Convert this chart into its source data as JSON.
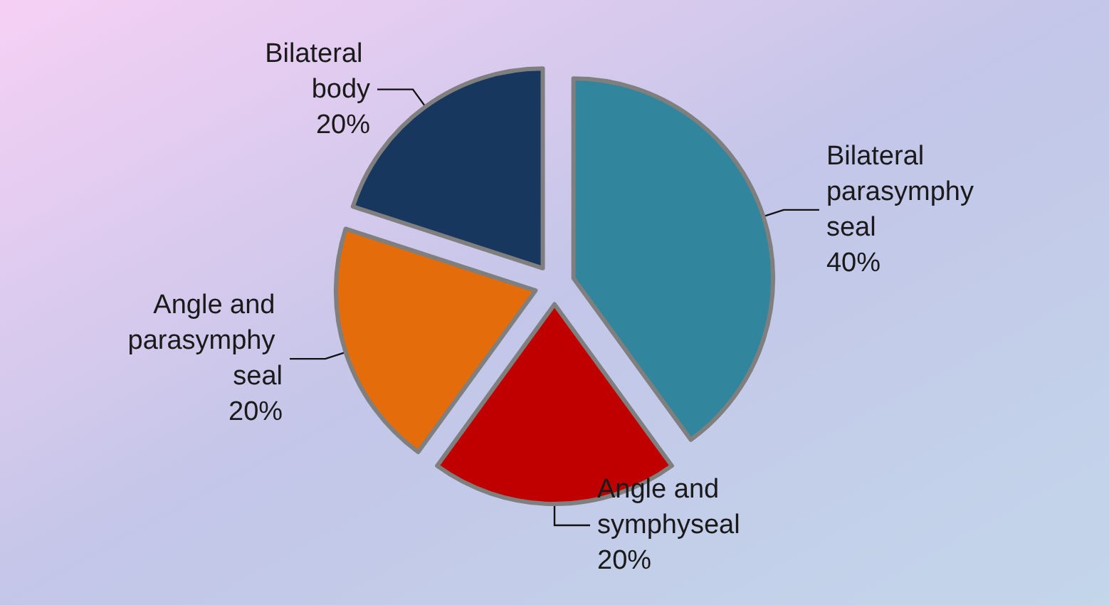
{
  "chart_data": {
    "type": "pie",
    "categories": [
      "Bilateral parasymphy seal",
      "Angle and symphyseal",
      "Angle and parasymphy seal",
      "Bilateral body"
    ],
    "values": [
      40,
      20,
      20,
      20
    ],
    "colors": [
      "#31859c",
      "#c00000",
      "#e46c0a",
      "#17375e"
    ],
    "value_labels": [
      "40%",
      "20%",
      "20%",
      "20%"
    ],
    "legend": false
  }
}
